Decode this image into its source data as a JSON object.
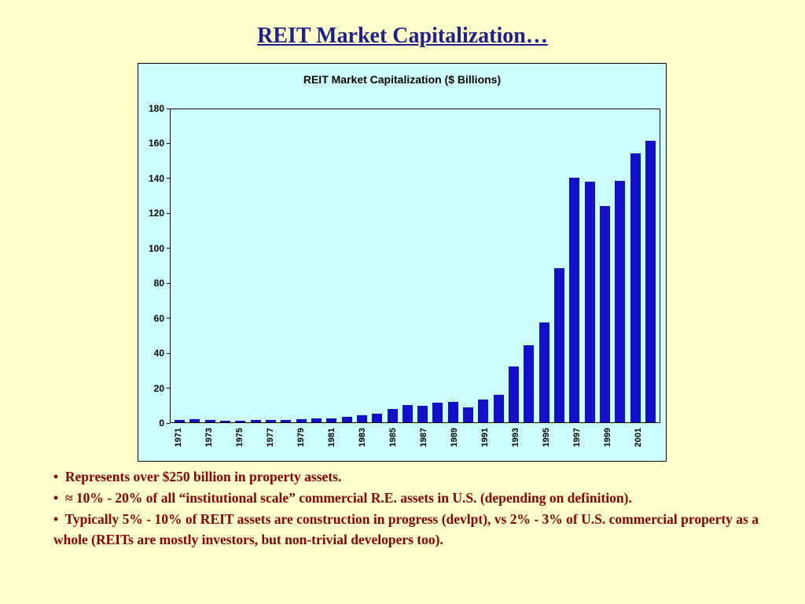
{
  "slide": {
    "title": "REIT Market Capitalization…",
    "background_color": "#FFFFC9",
    "title_color": "#20208C"
  },
  "chart_data": {
    "type": "bar",
    "title": "REIT Market Capitalization ($ Billions)",
    "categories": [
      1971,
      1972,
      1973,
      1974,
      1975,
      1976,
      1977,
      1978,
      1979,
      1980,
      1981,
      1982,
      1983,
      1984,
      1985,
      1986,
      1987,
      1988,
      1989,
      1990,
      1991,
      1992,
      1993,
      1994,
      1995,
      1996,
      1997,
      1998,
      1999,
      2000,
      2001,
      2002
    ],
    "values": [
      1.5,
      1.9,
      1.4,
      0.7,
      0.9,
      1.3,
      1.5,
      1.4,
      1.8,
      2.3,
      2.4,
      3.3,
      4.3,
      5.1,
      7.7,
      9.9,
      9.7,
      11.4,
      11.7,
      8.7,
      13.0,
      15.9,
      32.2,
      44.3,
      57.5,
      88.8,
      140.5,
      138.3,
      124.3,
      138.7,
      154.9,
      161.9
    ],
    "x_tick_labels": [
      "1971",
      "1973",
      "1975",
      "1977",
      "1979",
      "1981",
      "1983",
      "1985",
      "1987",
      "1989",
      "1991",
      "1993",
      "1995",
      "1997",
      "1999",
      "2001"
    ],
    "xlabel": "",
    "ylabel": "",
    "ylim": [
      0,
      180
    ],
    "y_ticks": [
      0,
      20,
      40,
      60,
      80,
      100,
      120,
      140,
      160,
      180
    ],
    "grid": false,
    "legend_position": "none",
    "bar_color": "#1111CC",
    "plot_background": "#CCFFFF"
  },
  "bullets": {
    "bullet_char": "•",
    "color": "#8B0000",
    "items": [
      "Represents over $250 billion in property assets.",
      "≈ 10% - 20% of all “institutional scale” commercial R.E. assets in U.S. (depending on definition).",
      "Typically 5% - 10% of REIT assets are construction in progress (devlpt), vs 2% - 3% of U.S. commercial property as a whole (REITs are mostly investors, but non-trivial developers too)."
    ]
  }
}
